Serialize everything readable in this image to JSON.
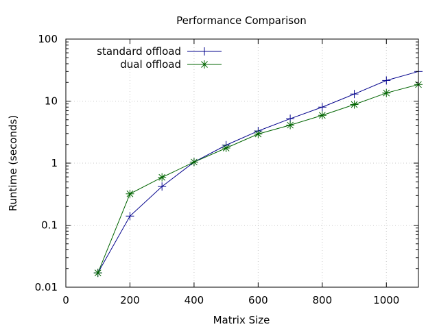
{
  "chart_data": {
    "type": "line",
    "title": "Performance Comparison",
    "xlabel": "Matrix Size",
    "ylabel": "Runtime (seconds)",
    "xlim": [
      0,
      1100
    ],
    "ylim": [
      0.01,
      100
    ],
    "yscale": "log",
    "grid": true,
    "legend_position": "top-left",
    "x_ticks": [
      {
        "value": 0,
        "label": "0"
      },
      {
        "value": 200,
        "label": "200"
      },
      {
        "value": 400,
        "label": "400"
      },
      {
        "value": 600,
        "label": "600"
      },
      {
        "value": 800,
        "label": "800"
      },
      {
        "value": 1000,
        "label": "1000"
      }
    ],
    "y_ticks": [
      {
        "value": 0.01,
        "label": "0.01"
      },
      {
        "value": 0.1,
        "label": "0.1"
      },
      {
        "value": 1,
        "label": "1"
      },
      {
        "value": 10,
        "label": "10"
      },
      {
        "value": 100,
        "label": "100"
      }
    ],
    "x": [
      100,
      200,
      300,
      400,
      500,
      600,
      700,
      800,
      900,
      1000,
      1100
    ],
    "series": [
      {
        "name": "standard offload",
        "color": "#00008b",
        "marker": "plus",
        "values": [
          0.017,
          0.14,
          0.42,
          1.04,
          1.95,
          3.3,
          5.2,
          8.0,
          13.0,
          21.5,
          30.0
        ]
      },
      {
        "name": "dual offload",
        "color": "#006400",
        "marker": "star",
        "values": [
          0.017,
          0.32,
          0.59,
          1.04,
          1.75,
          2.95,
          4.1,
          5.9,
          8.8,
          13.5,
          18.5
        ]
      }
    ]
  }
}
